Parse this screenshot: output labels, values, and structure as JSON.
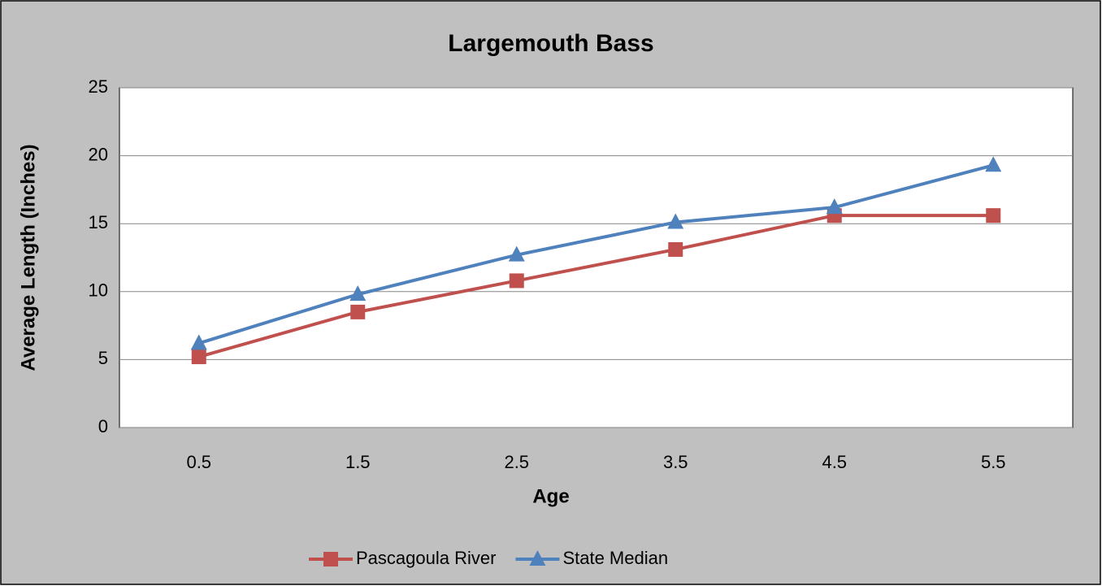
{
  "chart_data": {
    "type": "line",
    "title": "Largemouth Bass",
    "x_label": "Age",
    "y_label": "Average Length (Inches)",
    "categories": [
      "0.5",
      "1.5",
      "2.5",
      "3.5",
      "4.5",
      "5.5"
    ],
    "series": [
      {
        "name": "Pascagoula River",
        "color": "#c0504d",
        "marker": "square",
        "values": [
          5.2,
          8.5,
          10.8,
          13.1,
          15.6,
          15.6
        ]
      },
      {
        "name": "State Median",
        "color": "#4f81bd",
        "marker": "triangle",
        "values": [
          6.2,
          9.8,
          12.7,
          15.1,
          16.2,
          19.3
        ]
      }
    ],
    "ylim": [
      0,
      25
    ],
    "yticks": [
      0,
      5,
      10,
      15,
      20,
      25
    ],
    "grid": true,
    "legend": "bottom"
  }
}
